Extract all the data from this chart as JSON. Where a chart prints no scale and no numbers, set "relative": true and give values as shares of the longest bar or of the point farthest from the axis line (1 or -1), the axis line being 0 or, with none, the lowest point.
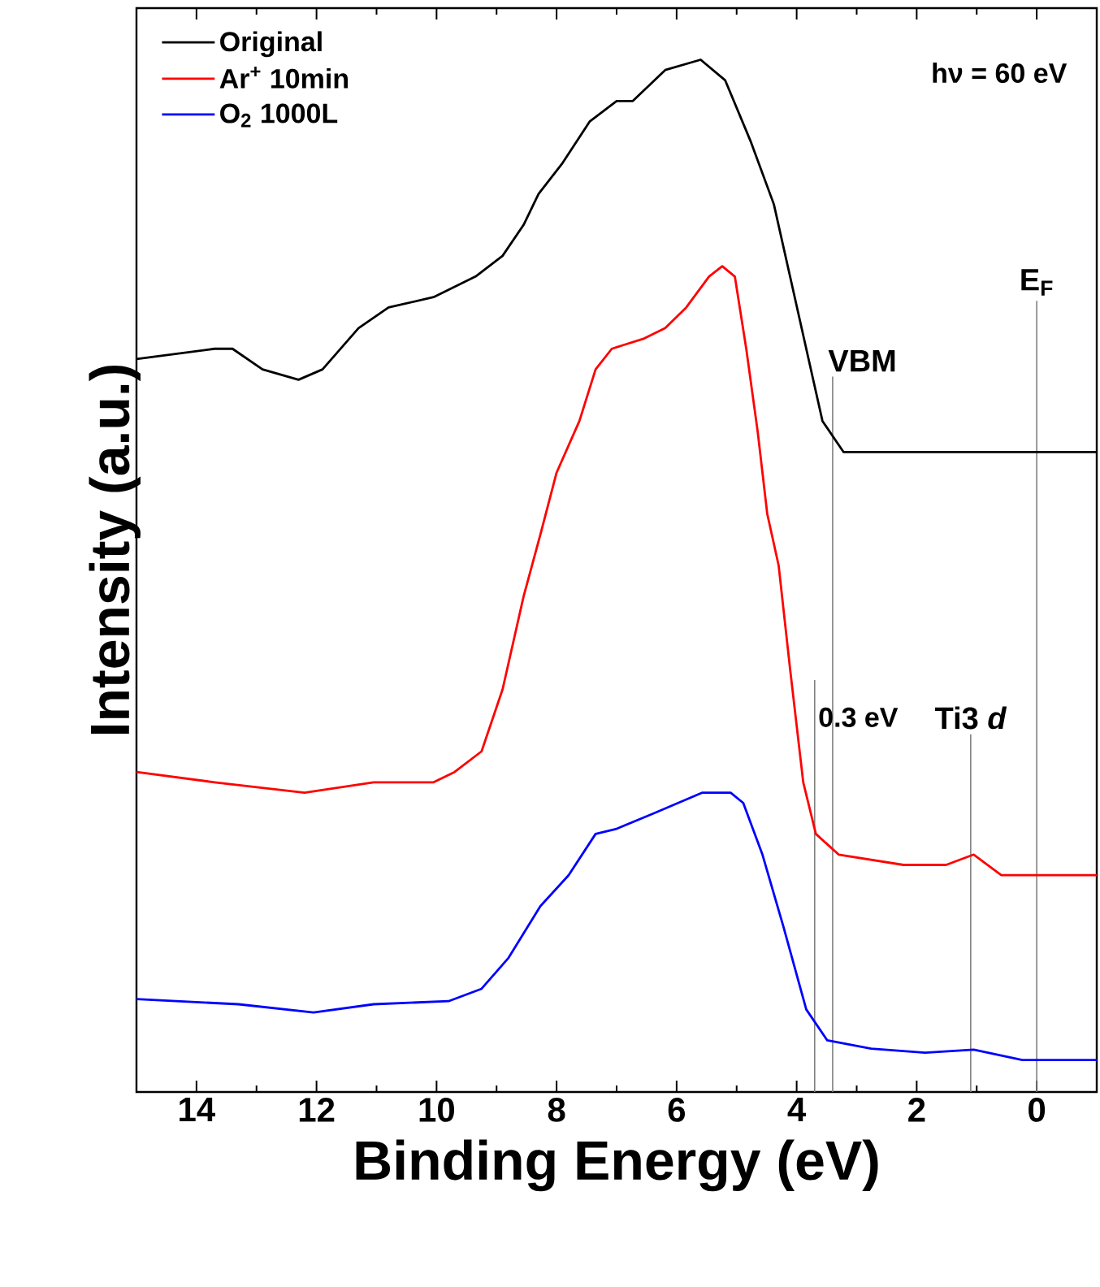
{
  "chart_data": {
    "type": "line",
    "xlabel": "Binding Energy (eV)",
    "ylabel": "Intensity (a.u.)",
    "xlim": [
      15,
      -1
    ],
    "xticks": [
      14,
      12,
      10,
      8,
      6,
      4,
      2,
      0
    ],
    "relative": true,
    "legend": "top left",
    "grid": false,
    "series": [
      {
        "name": "Original",
        "color": "#000000",
        "x": [
          15,
          13.7,
          13.4,
          12.9,
          12.3,
          11.9,
          11.3,
          10.8,
          10.05,
          9.35,
          8.9,
          8.55,
          8.3,
          7.9,
          7.45,
          7.0,
          6.73,
          6.19,
          5.6,
          5.19,
          4.76,
          4.38,
          4.11,
          3.84,
          3.57,
          3.22,
          2.59,
          0.97,
          -1
        ],
        "values": [
          0.71,
          0.72,
          0.72,
          0.7,
          0.69,
          0.7,
          0.74,
          0.76,
          0.77,
          0.79,
          0.81,
          0.84,
          0.87,
          0.9,
          0.94,
          0.96,
          0.96,
          0.99,
          1.0,
          0.98,
          0.92,
          0.86,
          0.79,
          0.72,
          0.65,
          0.62,
          0.62,
          0.62,
          0.62
        ]
      },
      {
        "name": "Ar$^{+}$ 10min",
        "color": "#ff0000",
        "x": [
          15,
          13.7,
          12.2,
          11.05,
          10.05,
          9.7,
          9.25,
          8.9,
          8.55,
          8.27,
          8.0,
          7.62,
          7.35,
          7.08,
          6.54,
          6.19,
          5.84,
          5.46,
          5.24,
          5.03,
          4.84,
          4.65,
          4.49,
          4.3,
          4.11,
          3.89,
          3.68,
          3.3,
          2.22,
          1.51,
          1.05,
          0.59,
          0.05,
          -1
        ],
        "values": [
          0.31,
          0.3,
          0.29,
          0.3,
          0.3,
          0.31,
          0.33,
          0.39,
          0.48,
          0.54,
          0.6,
          0.65,
          0.7,
          0.72,
          0.73,
          0.74,
          0.76,
          0.79,
          0.8,
          0.79,
          0.72,
          0.64,
          0.56,
          0.51,
          0.41,
          0.3,
          0.25,
          0.23,
          0.22,
          0.22,
          0.23,
          0.21,
          0.21,
          0.21
        ]
      },
      {
        "name": "O$_{2}$ 1000L",
        "color": "#0000ff",
        "x": [
          15,
          13.3,
          12.05,
          11.05,
          9.8,
          9.25,
          8.8,
          8.27,
          7.8,
          7.35,
          7.0,
          6.38,
          5.57,
          5.1,
          4.89,
          4.57,
          4.22,
          3.84,
          3.49,
          2.76,
          1.86,
          1.05,
          0.24,
          -1
        ],
        "values": [
          0.09,
          0.085,
          0.077,
          0.085,
          0.088,
          0.1,
          0.13,
          0.18,
          0.21,
          0.25,
          0.255,
          0.27,
          0.29,
          0.29,
          0.28,
          0.23,
          0.16,
          0.08,
          0.05,
          0.042,
          0.038,
          0.041,
          0.031,
          0.031
        ]
      }
    ],
    "ref_lines": [
      {
        "axis": "x",
        "value": 3.4,
        "label": "VBM",
        "color": "#808080"
      },
      {
        "axis": "x",
        "value": 0,
        "label": "E$_{F}$",
        "color": "#808080"
      },
      {
        "axis": "x",
        "value": 1.1,
        "label": "Ti3 *d*",
        "color": "#808080"
      },
      {
        "axis": "x",
        "value": 3.7,
        "color": "#808080"
      }
    ],
    "annotations": [
      "hν = 60 eV",
      {
        "text": "0.3 eV",
        "x": 3.7,
        "y": 0.35
      }
    ]
  }
}
